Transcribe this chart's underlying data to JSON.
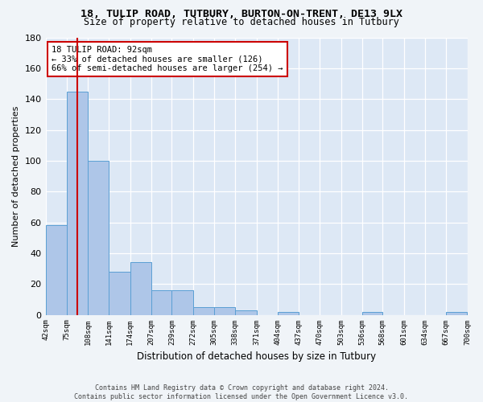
{
  "title1": "18, TULIP ROAD, TUTBURY, BURTON-ON-TRENT, DE13 9LX",
  "title2": "Size of property relative to detached houses in Tutbury",
  "xlabel": "Distribution of detached houses by size in Tutbury",
  "ylabel": "Number of detached properties",
  "bin_labels": [
    "42sqm",
    "75sqm",
    "108sqm",
    "141sqm",
    "174sqm",
    "207sqm",
    "239sqm",
    "272sqm",
    "305sqm",
    "338sqm",
    "371sqm",
    "404sqm",
    "437sqm",
    "470sqm",
    "503sqm",
    "536sqm",
    "568sqm",
    "601sqm",
    "634sqm",
    "667sqm",
    "700sqm"
  ],
  "bin_edges": [
    42,
    75,
    108,
    141,
    174,
    207,
    239,
    272,
    305,
    338,
    371,
    404,
    437,
    470,
    503,
    536,
    568,
    601,
    634,
    667,
    700
  ],
  "bar_heights": [
    58,
    145,
    100,
    28,
    34,
    16,
    16,
    5,
    5,
    3,
    0,
    2,
    0,
    0,
    0,
    2,
    0,
    0,
    0,
    2
  ],
  "bar_color": "#aec6e8",
  "bar_edge_color": "#5a9fd4",
  "property_size": 92,
  "property_label": "18 TULIP ROAD: 92sqm",
  "annotation_line1": "← 33% of detached houses are smaller (126)",
  "annotation_line2": "66% of semi-detached houses are larger (254) →",
  "vline_color": "#cc0000",
  "annotation_box_color": "#ffffff",
  "annotation_box_edge": "#cc0000",
  "ylim": [
    0,
    180
  ],
  "yticks": [
    0,
    20,
    40,
    60,
    80,
    100,
    120,
    140,
    160,
    180
  ],
  "bg_color": "#dde8f5",
  "grid_color": "#ffffff",
  "fig_color": "#f0f4f8"
}
